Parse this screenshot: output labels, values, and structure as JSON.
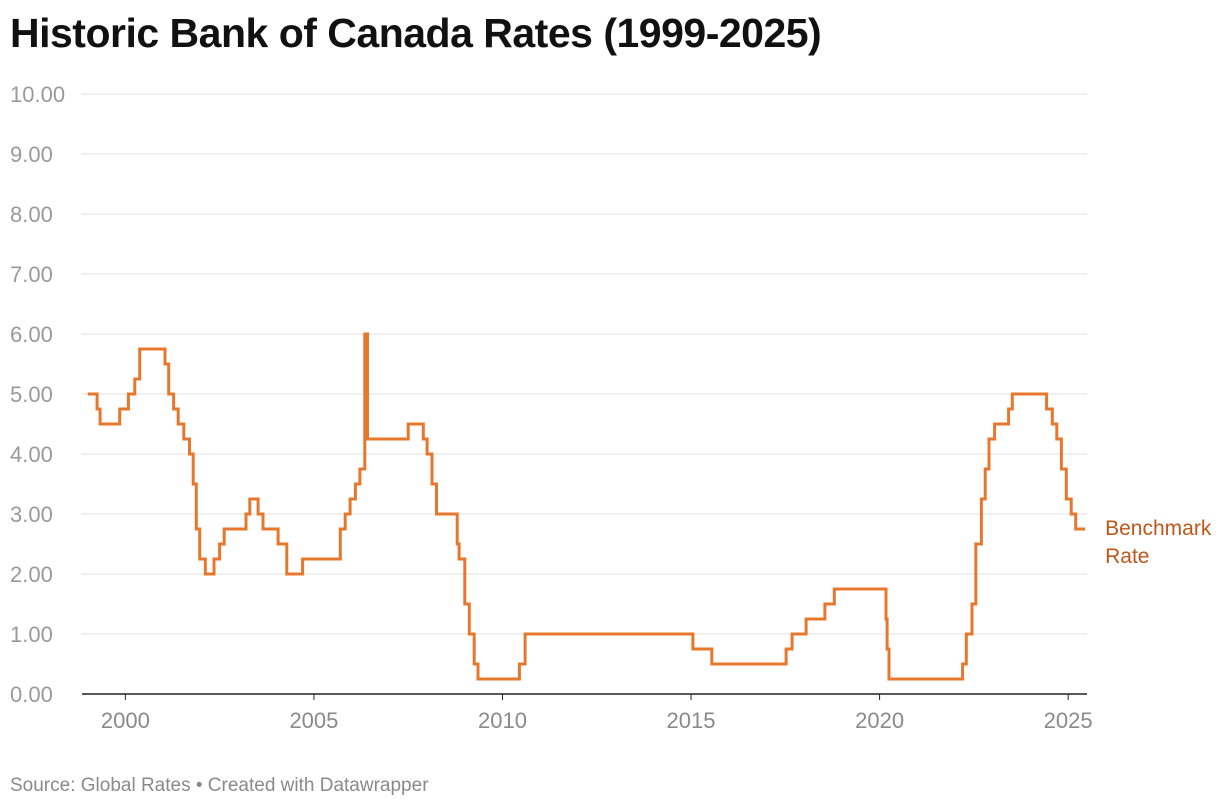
{
  "title": "Historic Bank of Canada Rates (1999-2025)",
  "footer": "Source: Global Rates • Created with Datawrapper",
  "chart_data": {
    "type": "line",
    "title": "Historic Bank of Canada Rates (1999-2025)",
    "xlabel": "",
    "ylabel": "",
    "xlim": [
      1998.85,
      2025.5
    ],
    "ylim": [
      0,
      10
    ],
    "y_ticks": [
      "0.00",
      "1.00",
      "2.00",
      "3.00",
      "4.00",
      "5.00",
      "6.00",
      "7.00",
      "8.00",
      "9.00",
      "10.00"
    ],
    "x_ticks": [
      "2000",
      "2005",
      "2010",
      "2015",
      "2020",
      "2025"
    ],
    "grid": true,
    "line_color": "#e8772e",
    "label_color": "#c0561a",
    "series": [
      {
        "name": "Benchmark Rate",
        "step": true,
        "points": [
          [
            1999.0,
            5.0
          ],
          [
            1999.25,
            4.75
          ],
          [
            1999.33,
            4.5
          ],
          [
            1999.85,
            4.75
          ],
          [
            2000.08,
            5.0
          ],
          [
            2000.25,
            5.25
          ],
          [
            2000.38,
            5.75
          ],
          [
            2001.05,
            5.5
          ],
          [
            2001.15,
            5.0
          ],
          [
            2001.28,
            4.75
          ],
          [
            2001.4,
            4.5
          ],
          [
            2001.55,
            4.25
          ],
          [
            2001.7,
            4.0
          ],
          [
            2001.8,
            3.5
          ],
          [
            2001.88,
            2.75
          ],
          [
            2001.97,
            2.25
          ],
          [
            2002.12,
            2.0
          ],
          [
            2002.35,
            2.25
          ],
          [
            2002.5,
            2.5
          ],
          [
            2002.62,
            2.75
          ],
          [
            2003.2,
            3.0
          ],
          [
            2003.3,
            3.25
          ],
          [
            2003.52,
            3.0
          ],
          [
            2003.65,
            2.75
          ],
          [
            2004.05,
            2.5
          ],
          [
            2004.28,
            2.0
          ],
          [
            2004.7,
            2.25
          ],
          [
            2005.7,
            2.75
          ],
          [
            2005.83,
            3.0
          ],
          [
            2005.96,
            3.25
          ],
          [
            2006.1,
            3.5
          ],
          [
            2006.22,
            3.75
          ],
          [
            2006.35,
            6.0
          ],
          [
            2006.42,
            4.25
          ],
          [
            2007.5,
            4.5
          ],
          [
            2007.9,
            4.25
          ],
          [
            2008.0,
            4.0
          ],
          [
            2008.13,
            3.5
          ],
          [
            2008.25,
            3.0
          ],
          [
            2008.8,
            2.5
          ],
          [
            2008.85,
            2.25
          ],
          [
            2009.0,
            1.5
          ],
          [
            2009.12,
            1.0
          ],
          [
            2009.25,
            0.5
          ],
          [
            2009.35,
            0.25
          ],
          [
            2010.45,
            0.5
          ],
          [
            2010.6,
            1.0
          ],
          [
            2015.05,
            0.75
          ],
          [
            2015.55,
            0.5
          ],
          [
            2017.52,
            0.75
          ],
          [
            2017.68,
            1.0
          ],
          [
            2018.05,
            1.25
          ],
          [
            2018.55,
            1.5
          ],
          [
            2018.8,
            1.75
          ],
          [
            2020.17,
            1.25
          ],
          [
            2020.2,
            0.75
          ],
          [
            2020.25,
            0.25
          ],
          [
            2022.2,
            0.5
          ],
          [
            2022.3,
            1.0
          ],
          [
            2022.45,
            1.5
          ],
          [
            2022.55,
            2.5
          ],
          [
            2022.7,
            3.25
          ],
          [
            2022.8,
            3.75
          ],
          [
            2022.9,
            4.25
          ],
          [
            2023.05,
            4.5
          ],
          [
            2023.42,
            4.75
          ],
          [
            2023.52,
            5.0
          ],
          [
            2024.43,
            4.75
          ],
          [
            2024.58,
            4.5
          ],
          [
            2024.7,
            4.25
          ],
          [
            2024.82,
            3.75
          ],
          [
            2024.95,
            3.25
          ],
          [
            2025.08,
            3.0
          ],
          [
            2025.2,
            2.75
          ],
          [
            2025.45,
            2.75
          ]
        ]
      }
    ]
  }
}
